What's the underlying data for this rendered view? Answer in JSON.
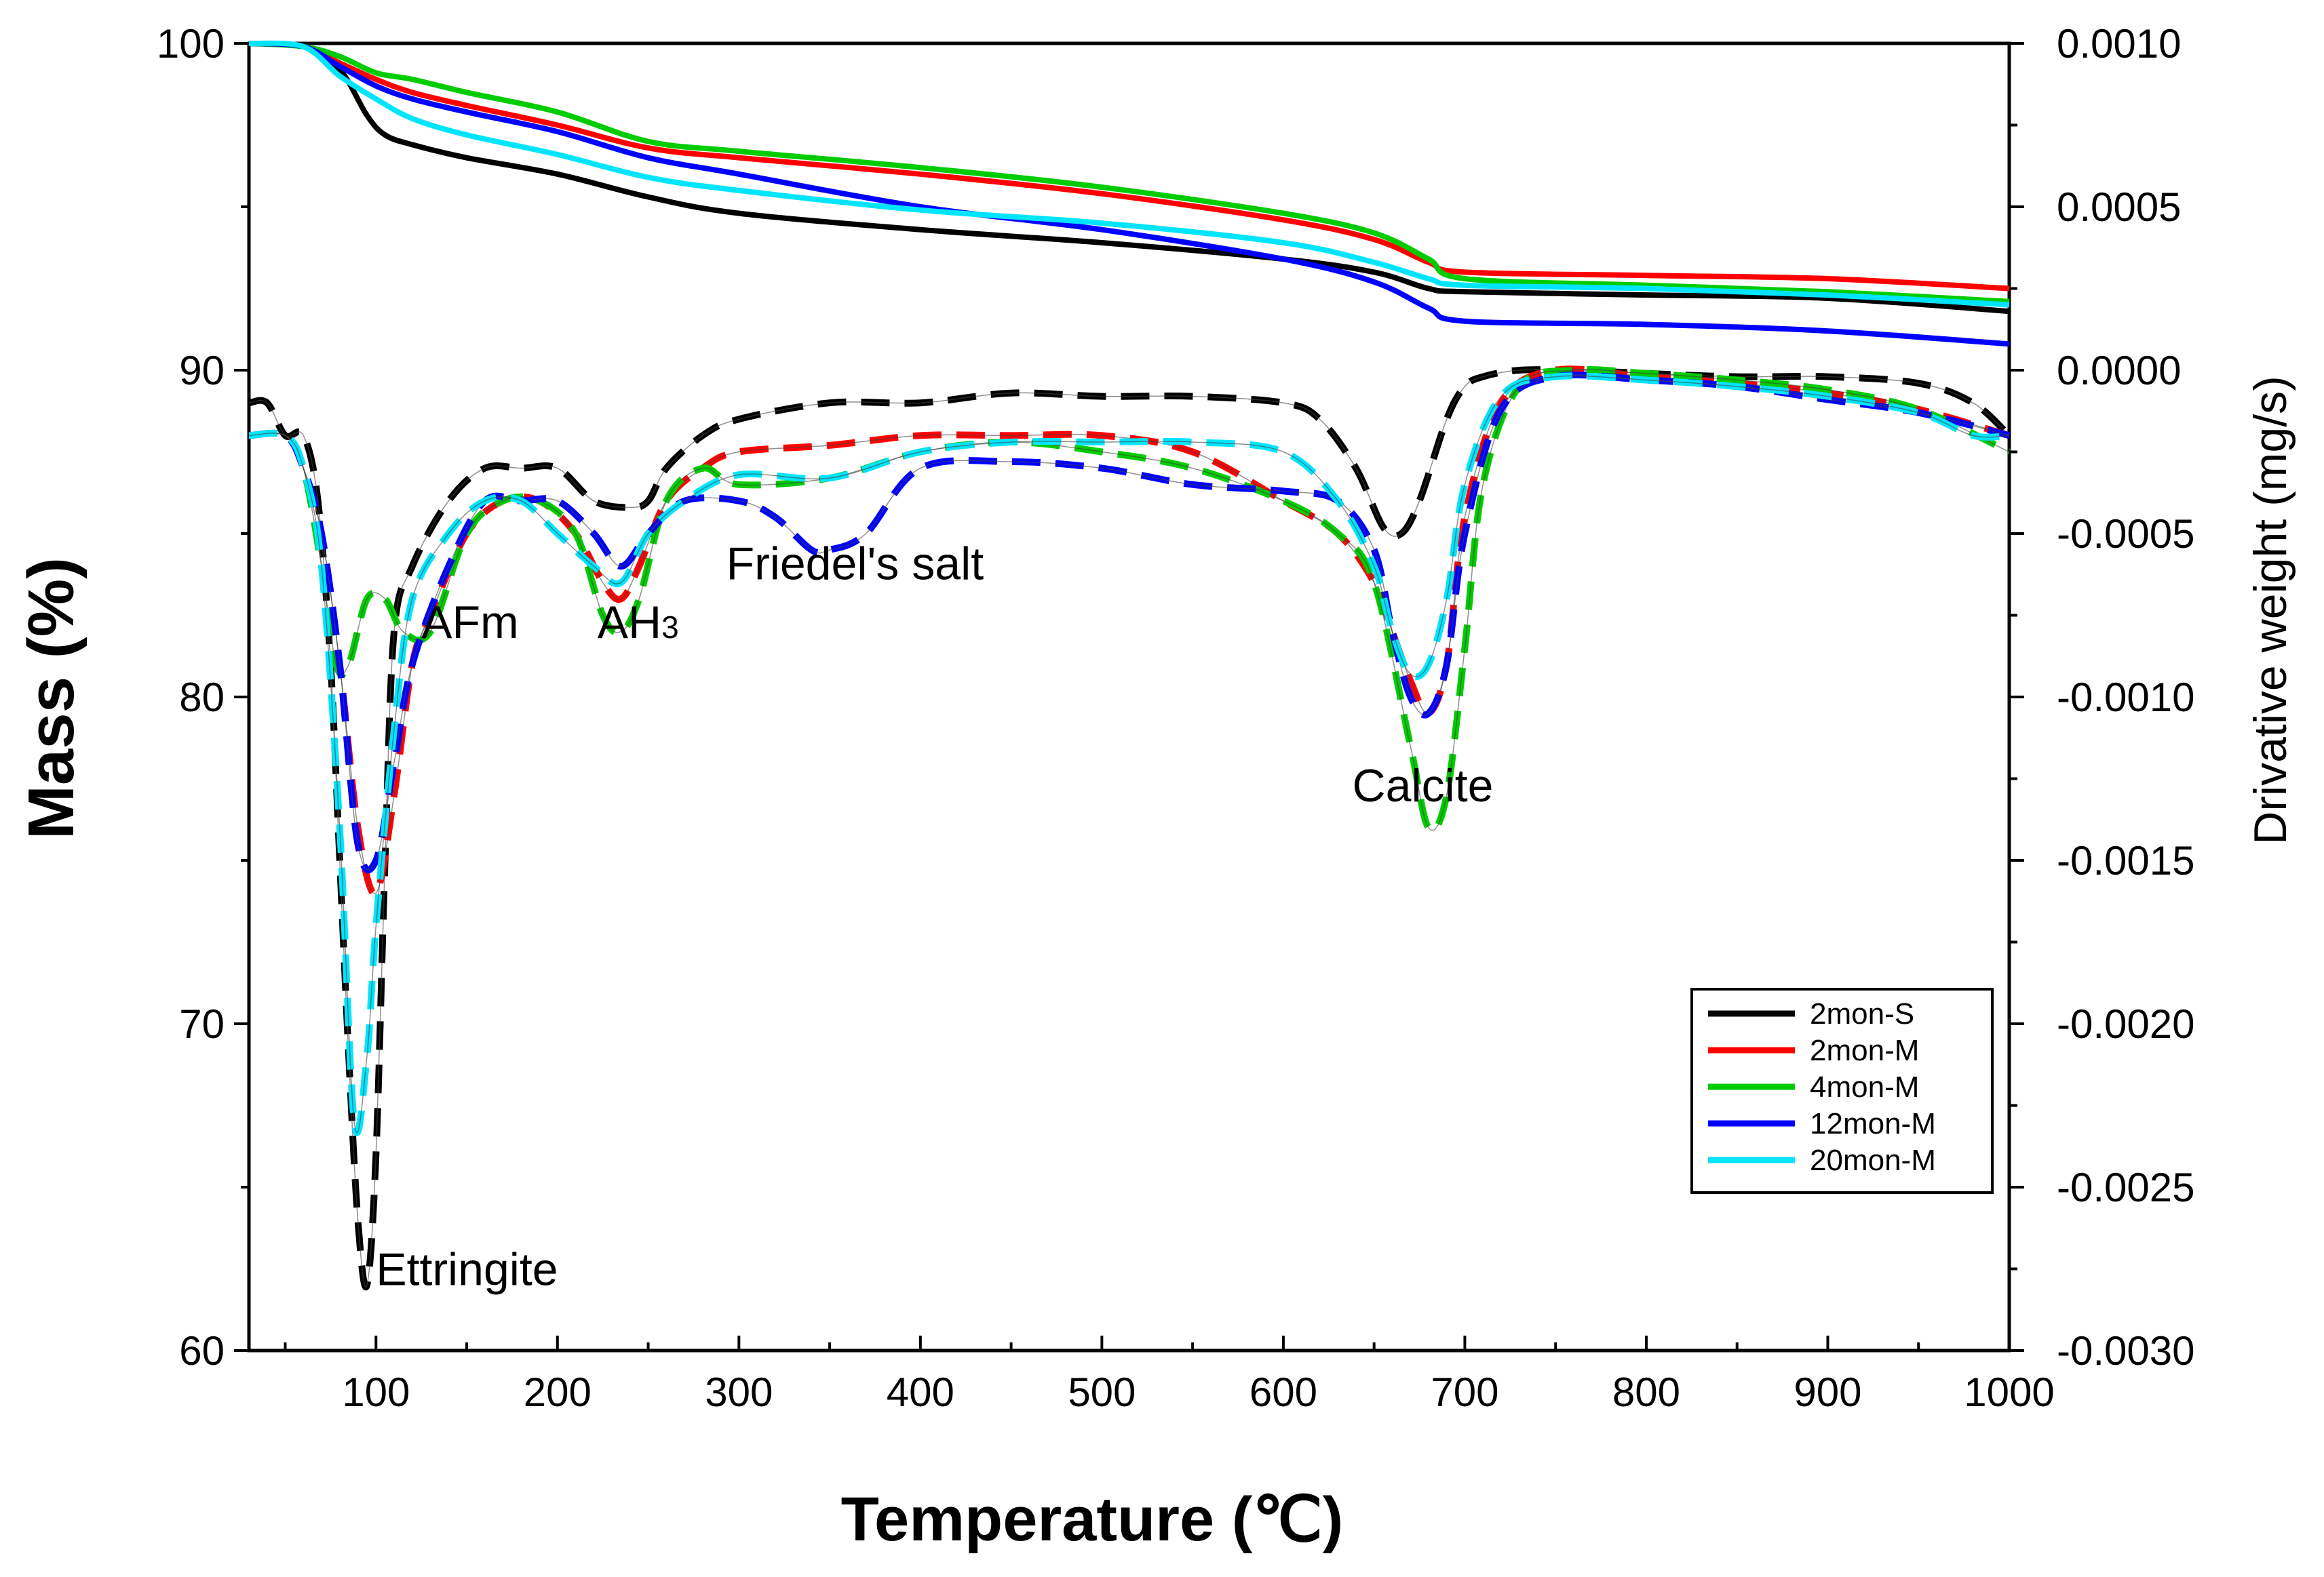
{
  "chart_data": {
    "type": "line",
    "title": "",
    "xlabel": "Temperature (℃)",
    "ylabel_left": "Mass (%)",
    "ylabel_right": "Drivative weight (mg/s)",
    "xlim": [
      30,
      1000
    ],
    "ylim_left": [
      60,
      100
    ],
    "ylim_right": [
      -0.003,
      0.001
    ],
    "x_ticks": [
      100,
      200,
      300,
      400,
      500,
      600,
      700,
      800,
      900,
      1000
    ],
    "x_tick_labels": [
      "100",
      "200",
      "300",
      "400",
      "500",
      "600",
      "700",
      "800",
      "900",
      "1000"
    ],
    "y_left_ticks": [
      60,
      70,
      80,
      90,
      100
    ],
    "y_left_tick_labels": [
      "60",
      "70",
      "80",
      "90",
      "100"
    ],
    "y_right_ticks": [
      -0.003,
      -0.0025,
      -0.002,
      -0.0015,
      -0.001,
      -0.0005,
      0.0,
      0.0005,
      0.001
    ],
    "y_right_tick_labels": [
      "-0.0030",
      "-0.0025",
      "-0.0020",
      "-0.0015",
      "-0.0010",
      "-0.0005",
      "0.0000",
      "0.0005",
      "0.0010"
    ],
    "legend_position": "bottom-right",
    "annotations": [
      {
        "text": "Ettringite",
        "x": 100,
        "y": 62.0,
        "axis": "left"
      },
      {
        "text": "AFm",
        "x": 125,
        "y": 81.8,
        "axis": "left"
      },
      {
        "text": "AH",
        "subscript": "3",
        "x": 222,
        "y": 81.8,
        "axis": "left"
      },
      {
        "text": "Friedel's salt",
        "x": 293,
        "y": 83.6,
        "axis": "left"
      },
      {
        "text": "Calcite",
        "x": 638,
        "y": 76.8,
        "axis": "left"
      }
    ],
    "series": [
      {
        "name": "2mon-S",
        "color": "#000000",
        "mass": {
          "x": [
            30,
            60,
            80,
            95,
            105,
            120,
            150,
            200,
            250,
            300,
            400,
            500,
            600,
            650,
            680,
            700,
            800,
            900,
            1000
          ],
          "y": [
            100,
            99.9,
            99.2,
            97.8,
            97.2,
            96.9,
            96.5,
            96.0,
            95.3,
            94.8,
            94.3,
            93.9,
            93.4,
            93.0,
            92.5,
            92.4,
            92.3,
            92.2,
            91.8
          ]
        },
        "dtg": {
          "x": [
            30,
            40,
            50,
            60,
            68,
            75,
            80,
            85,
            90,
            95,
            100,
            105,
            110,
            120,
            140,
            160,
            180,
            200,
            220,
            240,
            250,
            260,
            280,
            300,
            350,
            400,
            450,
            500,
            550,
            600,
            620,
            640,
            655,
            665,
            675,
            690,
            700,
            710,
            730,
            760,
            800,
            850,
            900,
            950,
            980,
            1000
          ],
          "y": [
            -0.0001,
            -0.0001,
            -0.0002,
            -0.0002,
            -0.0004,
            -0.0009,
            -0.0015,
            -0.0021,
            -0.0026,
            -0.0028,
            -0.0024,
            -0.0015,
            -0.0008,
            -0.0006,
            -0.0004,
            -0.0003,
            -0.0003,
            -0.0003,
            -0.0004,
            -0.00042,
            -0.0004,
            -0.0003,
            -0.0002,
            -0.00015,
            -0.0001,
            -0.0001,
            -7e-05,
            -8e-05,
            -8e-05,
            -0.0001,
            -0.00015,
            -0.0003,
            -0.00048,
            -0.0005,
            -0.0004,
            -0.00015,
            -5e-05,
            -2e-05,
            0.0,
            0.0,
            -1e-05,
            -2e-05,
            -2e-05,
            -4e-05,
            -0.0001,
            -0.0002
          ]
        }
      },
      {
        "name": "2mon-M",
        "color": "#ff0000",
        "mass": {
          "x": [
            30,
            60,
            80,
            100,
            120,
            150,
            200,
            250,
            300,
            400,
            500,
            600,
            650,
            680,
            700,
            800,
            900,
            1000
          ],
          "y": [
            100,
            99.9,
            99.4,
            98.9,
            98.5,
            98.1,
            97.5,
            96.8,
            96.5,
            96.0,
            95.4,
            94.6,
            94.0,
            93.3,
            93.0,
            92.9,
            92.8,
            92.5
          ]
        },
        "dtg": {
          "x": [
            30,
            50,
            60,
            70,
            80,
            90,
            100,
            110,
            120,
            130,
            150,
            170,
            190,
            210,
            225,
            235,
            245,
            260,
            280,
            300,
            350,
            400,
            450,
            500,
            550,
            600,
            630,
            650,
            660,
            670,
            680,
            690,
            700,
            720,
            750,
            800,
            850,
            900,
            950,
            1000
          ],
          "y": [
            -0.0002,
            -0.0002,
            -0.0003,
            -0.0005,
            -0.0009,
            -0.0014,
            -0.0016,
            -0.0013,
            -0.0009,
            -0.00075,
            -0.0005,
            -0.0004,
            -0.0004,
            -0.0005,
            -0.00065,
            -0.0007,
            -0.0006,
            -0.0004,
            -0.0003,
            -0.00025,
            -0.00023,
            -0.0002,
            -0.0002,
            -0.0002,
            -0.00025,
            -0.0004,
            -0.0005,
            -0.00065,
            -0.0008,
            -0.00095,
            -0.00105,
            -0.0009,
            -0.00045,
            -0.0001,
            0.0,
            -2e-05,
            -4e-05,
            -7e-05,
            -0.00012,
            -0.0002
          ]
        }
      },
      {
        "name": "4mon-M",
        "color": "#00cc00",
        "mass": {
          "x": [
            30,
            60,
            80,
            100,
            120,
            150,
            200,
            250,
            300,
            400,
            500,
            600,
            650,
            680,
            700,
            800,
            900,
            1000
          ],
          "y": [
            100,
            99.9,
            99.6,
            99.1,
            98.9,
            98.5,
            97.9,
            97.0,
            96.7,
            96.2,
            95.6,
            94.8,
            94.2,
            93.4,
            92.8,
            92.6,
            92.4,
            92.1
          ]
        },
        "dtg": {
          "x": [
            30,
            50,
            60,
            70,
            78,
            85,
            95,
            105,
            115,
            130,
            150,
            170,
            190,
            210,
            225,
            235,
            245,
            260,
            280,
            300,
            350,
            400,
            450,
            500,
            550,
            600,
            630,
            650,
            670,
            680,
            690,
            700,
            710,
            730,
            760,
            800,
            850,
            900,
            950,
            1000
          ],
          "y": [
            -0.0002,
            -0.0002,
            -0.0003,
            -0.0006,
            -0.0009,
            -0.0009,
            -0.0007,
            -0.0007,
            -0.0008,
            -0.0008,
            -0.0005,
            -0.0004,
            -0.0004,
            -0.0005,
            -0.00075,
            -0.0008,
            -0.0007,
            -0.0004,
            -0.0003,
            -0.00035,
            -0.00033,
            -0.00025,
            -0.00022,
            -0.00025,
            -0.0003,
            -0.0004,
            -0.0005,
            -0.00065,
            -0.00115,
            -0.0014,
            -0.0013,
            -0.00085,
            -0.00035,
            -5e-05,
            0.0,
            -1e-05,
            -3e-05,
            -6e-05,
            -0.00012,
            -0.00025
          ]
        }
      },
      {
        "name": "12mon-M",
        "color": "#0000ff",
        "mass": {
          "x": [
            30,
            60,
            80,
            100,
            120,
            150,
            200,
            250,
            300,
            400,
            500,
            600,
            650,
            680,
            700,
            800,
            900,
            1000
          ],
          "y": [
            100,
            99.9,
            99.3,
            98.7,
            98.3,
            97.9,
            97.3,
            96.5,
            96.0,
            95.0,
            94.3,
            93.4,
            92.7,
            91.9,
            91.5,
            91.4,
            91.2,
            90.8
          ]
        },
        "dtg": {
          "x": [
            30,
            50,
            60,
            70,
            80,
            90,
            100,
            110,
            120,
            140,
            160,
            180,
            200,
            220,
            235,
            250,
            270,
            300,
            320,
            340,
            350,
            370,
            400,
            450,
            500,
            550,
            600,
            630,
            650,
            660,
            670,
            680,
            690,
            700,
            720,
            750,
            800,
            850,
            900,
            950,
            1000
          ],
          "y": [
            -0.0002,
            -0.0002,
            -0.0003,
            -0.0005,
            -0.0009,
            -0.00145,
            -0.0015,
            -0.0012,
            -0.0009,
            -0.0006,
            -0.0004,
            -0.0004,
            -0.0004,
            -0.0005,
            -0.0006,
            -0.0005,
            -0.0004,
            -0.0004,
            -0.00045,
            -0.00055,
            -0.00055,
            -0.0005,
            -0.0003,
            -0.00028,
            -0.0003,
            -0.00035,
            -0.00037,
            -0.0004,
            -0.00055,
            -0.0008,
            -0.001,
            -0.00105,
            -0.0009,
            -0.0005,
            -0.00012,
            -2e-05,
            -3e-05,
            -5e-05,
            -9e-05,
            -0.00013,
            -0.0002
          ]
        }
      },
      {
        "name": "20mon-M",
        "color": "#00e5ff",
        "mass": {
          "x": [
            30,
            60,
            80,
            100,
            120,
            150,
            200,
            250,
            300,
            400,
            500,
            600,
            650,
            680,
            700,
            800,
            900,
            1000
          ],
          "y": [
            100,
            99.9,
            99.0,
            98.3,
            97.7,
            97.2,
            96.6,
            95.9,
            95.5,
            94.9,
            94.5,
            93.9,
            93.3,
            92.8,
            92.6,
            92.5,
            92.3,
            92.0
          ]
        },
        "dtg": {
          "x": [
            30,
            50,
            60,
            70,
            80,
            88,
            95,
            100,
            110,
            120,
            140,
            160,
            180,
            200,
            220,
            235,
            250,
            270,
            300,
            350,
            400,
            450,
            500,
            550,
            600,
            630,
            650,
            660,
            670,
            680,
            690,
            700,
            720,
            750,
            800,
            850,
            900,
            950,
            980,
            1000
          ],
          "y": [
            -0.0002,
            -0.0002,
            -0.0003,
            -0.0006,
            -0.0014,
            -0.0023,
            -0.0021,
            -0.0017,
            -0.0011,
            -0.0007,
            -0.0005,
            -0.0004,
            -0.0004,
            -0.0005,
            -0.0006,
            -0.00065,
            -0.0005,
            -0.0004,
            -0.00032,
            -0.00033,
            -0.00025,
            -0.00022,
            -0.00022,
            -0.00022,
            -0.00025,
            -0.0004,
            -0.0006,
            -0.0008,
            -0.00093,
            -0.0009,
            -0.0007,
            -0.00035,
            -8e-05,
            -2e-05,
            -3e-05,
            -5e-05,
            -8e-05,
            -0.00013,
            -0.0002,
            -0.0002
          ]
        }
      }
    ]
  }
}
